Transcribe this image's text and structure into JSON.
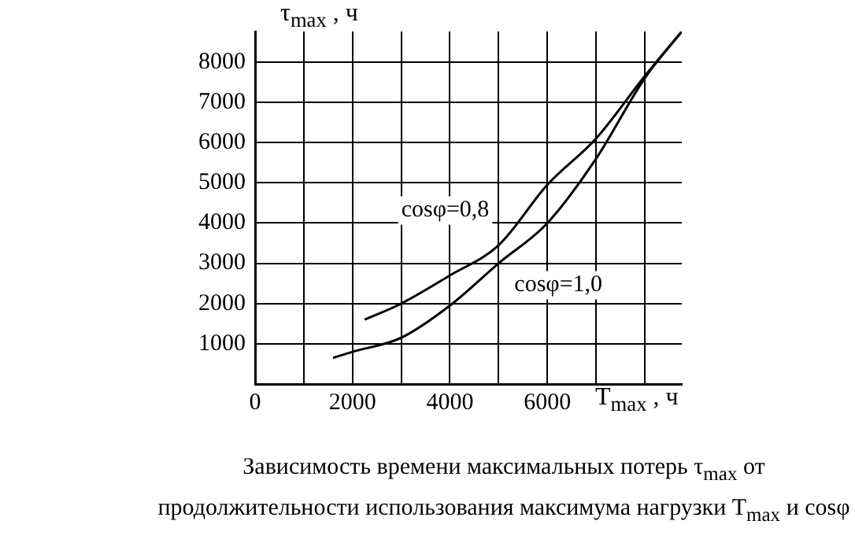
{
  "chart_data": {
    "type": "line",
    "xlabel": "T$_{max}$ , ч",
    "ylabel": "τ$_{max}$ , ч",
    "xlim": [
      0,
      8760
    ],
    "ylim": [
      0,
      8760
    ],
    "xticks": [
      0,
      {
        "value": 1000,
        "label": null
      },
      2000,
      {
        "value": 3000,
        "label": null
      },
      4000,
      {
        "value": 5000,
        "label": null
      },
      6000,
      {
        "value": 7000,
        "label": null
      },
      {
        "value": 8000,
        "label": null
      }
    ],
    "yticks": [
      {
        "value": 0,
        "label": null
      },
      1000,
      2000,
      3000,
      4000,
      5000,
      6000,
      7000,
      8000
    ],
    "grid": true,
    "legend": false,
    "marker": "none",
    "line_style": "solid",
    "series": [
      {
        "name": "cosφ=0,8",
        "color": "#000000",
        "x": [
          2250,
          3000,
          4000,
          5000,
          6000,
          7000,
          8000,
          8760
        ],
        "values": [
          1600,
          2000,
          2700,
          3450,
          4950,
          6100,
          7650,
          8760
        ]
      },
      {
        "name": "cosφ=1,0",
        "color": "#000000",
        "x": [
          1600,
          2000,
          3000,
          4000,
          5000,
          6000,
          7000,
          8000,
          8760
        ],
        "values": [
          650,
          800,
          1150,
          1950,
          3000,
          4000,
          5600,
          7600,
          8760
        ]
      }
    ],
    "annotations": [
      "Зависимость времени максимальных потерь τ$_{max}$ от продолжительности использования максимума нагрузки T$_{max}$ и cosφ"
    ]
  }
}
